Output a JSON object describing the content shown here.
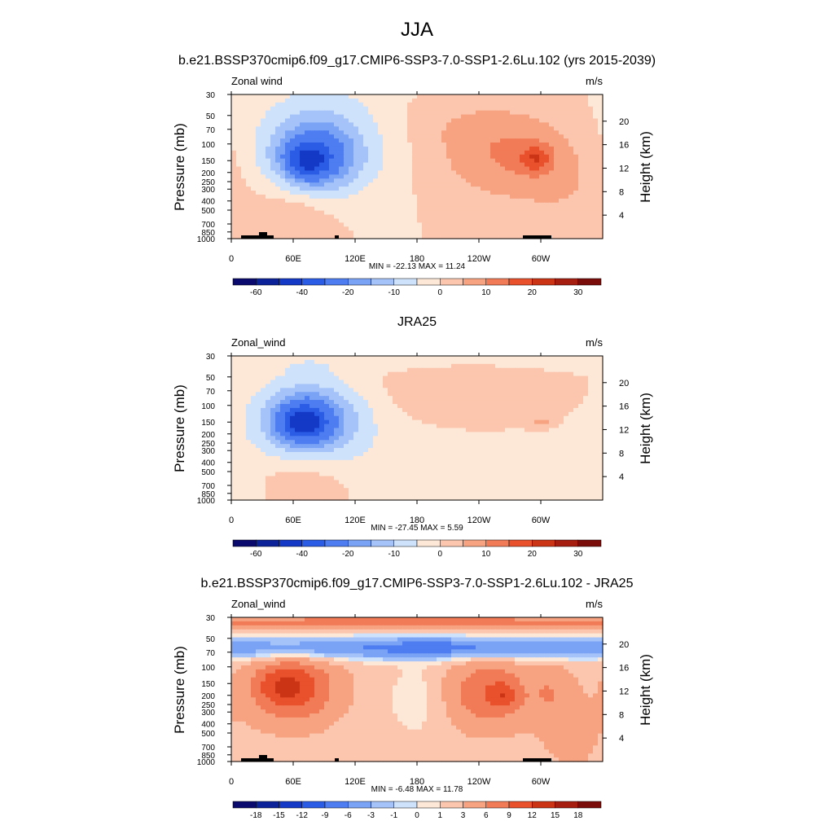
{
  "figure": {
    "season_title": "JJA"
  },
  "chart_data": [
    {
      "type": "heatmap",
      "title": "b.e21.BSSP370cmip6.f09_g17.CMIP6-SSP3-7.0-SSP1-2.6Lu.102 (yrs 2015-2039)",
      "variable_label": "Zonal wind",
      "units": "m/s",
      "ylabel": "Pressure (mb)",
      "ylabel_right": "Height (km)",
      "x_ticks": [
        "0",
        "60E",
        "120E",
        "180",
        "120W",
        "60W"
      ],
      "x_tick_values": [
        0,
        60,
        120,
        180,
        240,
        300
      ],
      "xlim": [
        0,
        360
      ],
      "y_ticks": [
        "30",
        "50",
        "70",
        "100",
        "150",
        "200",
        "250",
        "300",
        "400",
        "500",
        "700",
        "850",
        "1000"
      ],
      "y_tick_values": [
        30,
        50,
        70,
        100,
        150,
        200,
        250,
        300,
        400,
        500,
        700,
        850,
        1000
      ],
      "ylim": [
        1000,
        30
      ],
      "y_scale": "log",
      "height_ticks": [
        "20",
        "16",
        "12",
        "8",
        "4"
      ],
      "height_tick_values": [
        20,
        16,
        12,
        8,
        4
      ],
      "stats": "MIN = -22.13  MAX =  11.24",
      "colorbar_labels": [
        "-60",
        "-40",
        "-20",
        "-10",
        "0",
        "10",
        "20",
        "30"
      ],
      "colorbar_levels": [
        -70,
        -60,
        -50,
        -40,
        -30,
        -20,
        -15,
        -10,
        -5,
        0,
        5,
        10,
        15,
        20,
        25,
        30
      ],
      "colorbar_colors": [
        "#0a0a6e",
        "#0b2299",
        "#1339c6",
        "#2b5ce6",
        "#4d7df0",
        "#7aa2f5",
        "#a6c3f9",
        "#cfe2fc",
        "#fde8d8",
        "#fbc6ad",
        "#f7a280",
        "#f27b57",
        "#e8512c",
        "#cc3416",
        "#a51e10",
        "#7a0c0a"
      ],
      "field": {
        "background": 0,
        "features": [
          {
            "lon": 90,
            "p": 90,
            "dlon": 70,
            "dlp": 0.6,
            "value": -10
          },
          {
            "lon": 80,
            "p": 140,
            "dlon": 40,
            "dlp": 0.35,
            "value": -20
          },
          {
            "lon": 75,
            "p": 150,
            "dlon": 18,
            "dlp": 0.16,
            "value": -22
          },
          {
            "lon": 270,
            "p": 140,
            "dlon": 70,
            "dlp": 0.45,
            "value": 10
          },
          {
            "lon": 295,
            "p": 140,
            "dlon": 15,
            "dlp": 0.14,
            "value": 11
          },
          {
            "lon": 60,
            "p": 600,
            "dlon": 40,
            "dlp": 0.35,
            "value": 6
          },
          {
            "lon": 220,
            "p": 60,
            "dlon": 80,
            "dlp": 0.3,
            "value": 3
          },
          {
            "lon": 330,
            "p": 400,
            "dlon": 50,
            "dlp": 0.5,
            "value": 3
          }
        ]
      }
    },
    {
      "type": "heatmap",
      "title": "JRA25",
      "variable_label": "Zonal_wind",
      "units": "m/s",
      "ylabel": "Pressure (mb)",
      "ylabel_right": "Height (km)",
      "x_ticks": [
        "0",
        "60E",
        "120E",
        "180",
        "120W",
        "60W"
      ],
      "x_tick_values": [
        0,
        60,
        120,
        180,
        240,
        300
      ],
      "xlim": [
        0,
        360
      ],
      "y_ticks": [
        "30",
        "50",
        "70",
        "100",
        "150",
        "200",
        "250",
        "300",
        "400",
        "500",
        "700",
        "850",
        "1000"
      ],
      "y_tick_values": [
        30,
        50,
        70,
        100,
        150,
        200,
        250,
        300,
        400,
        500,
        700,
        850,
        1000
      ],
      "ylim": [
        1000,
        30
      ],
      "y_scale": "log",
      "height_ticks": [
        "20",
        "16",
        "12",
        "8",
        "4"
      ],
      "height_tick_values": [
        20,
        16,
        12,
        8,
        4
      ],
      "stats": "MIN = -27.45  MAX =   5.59",
      "colorbar_labels": [
        "-60",
        "-40",
        "-20",
        "-10",
        "0",
        "10",
        "20",
        "30"
      ],
      "colorbar_levels": [
        -70,
        -60,
        -50,
        -40,
        -30,
        -20,
        -15,
        -10,
        -5,
        0,
        5,
        10,
        15,
        20,
        25,
        30
      ],
      "colorbar_colors": [
        "#0a0a6e",
        "#0b2299",
        "#1339c6",
        "#2b5ce6",
        "#4d7df0",
        "#7aa2f5",
        "#a6c3f9",
        "#cfe2fc",
        "#fde8d8",
        "#fbc6ad",
        "#f7a280",
        "#f27b57",
        "#e8512c",
        "#cc3416",
        "#a51e10",
        "#7a0c0a"
      ],
      "field": {
        "background": 0,
        "features": [
          {
            "lon": 180,
            "p": 34,
            "dlon": 400,
            "dlp": 0.12,
            "value": -3
          },
          {
            "lon": 75,
            "p": 140,
            "dlon": 50,
            "dlp": 0.4,
            "value": -22
          },
          {
            "lon": 70,
            "p": 150,
            "dlon": 22,
            "dlp": 0.18,
            "value": -27
          },
          {
            "lon": 200,
            "p": 270,
            "dlon": 150,
            "dlp": 0.6,
            "value": -3
          },
          {
            "lon": 230,
            "p": 80,
            "dlon": 90,
            "dlp": 0.45,
            "value": 5
          },
          {
            "lon": 300,
            "p": 150,
            "dlon": 12,
            "dlp": 0.06,
            "value": 6
          },
          {
            "lon": 70,
            "p": 650,
            "dlon": 40,
            "dlp": 0.3,
            "value": 5
          },
          {
            "lon": 360,
            "p": 800,
            "dlon": 30,
            "dlp": 0.3,
            "value": -3
          }
        ]
      }
    },
    {
      "type": "heatmap",
      "title": "b.e21.BSSP370cmip6.f09_g17.CMIP6-SSP3-7.0-SSP1-2.6Lu.102 - JRA25",
      "variable_label": "Zonal_wind",
      "units": "m/s",
      "ylabel": "Pressure (mb)",
      "ylabel_right": "Height (km)",
      "x_ticks": [
        "0",
        "60E",
        "120E",
        "180",
        "120W",
        "60W"
      ],
      "x_tick_values": [
        0,
        60,
        120,
        180,
        240,
        300
      ],
      "xlim": [
        0,
        360
      ],
      "y_ticks": [
        "30",
        "50",
        "70",
        "100",
        "150",
        "200",
        "250",
        "300",
        "400",
        "500",
        "700",
        "850",
        "1000"
      ],
      "y_tick_values": [
        30,
        50,
        70,
        100,
        150,
        200,
        250,
        300,
        400,
        500,
        700,
        850,
        1000
      ],
      "ylim": [
        1000,
        30
      ],
      "y_scale": "log",
      "height_ticks": [
        "20",
        "16",
        "12",
        "8",
        "4"
      ],
      "height_tick_values": [
        20,
        16,
        12,
        8,
        4
      ],
      "stats": "MIN =  -6.48  MAX =  11.78",
      "colorbar_labels": [
        "-18",
        "-15",
        "-12",
        "-9",
        "-6",
        "-3",
        "-1",
        "0",
        "1",
        "3",
        "6",
        "9",
        "12",
        "15",
        "18"
      ],
      "colorbar_levels": [
        -21,
        -18,
        -15,
        -12,
        -9,
        -6,
        -3,
        -1,
        0,
        1,
        3,
        6,
        9,
        12,
        15,
        18
      ],
      "colorbar_colors": [
        "#0a0a6e",
        "#0b2299",
        "#1339c6",
        "#2b5ce6",
        "#4d7df0",
        "#7aa2f5",
        "#a6c3f9",
        "#cfe2fc",
        "#fde8d8",
        "#fbc6ad",
        "#f7a280",
        "#f27b57",
        "#e8512c",
        "#cc3416",
        "#a51e10",
        "#7a0c0a"
      ],
      "field": {
        "background": 2,
        "features": [
          {
            "lon": 180,
            "p": 34,
            "dlon": 400,
            "dlp": 0.08,
            "value": 5
          },
          {
            "lon": 180,
            "p": 63,
            "dlon": 400,
            "dlp": 0.12,
            "value": -8
          },
          {
            "lon": 200,
            "p": 62,
            "dlon": 50,
            "dlp": 0.08,
            "value": -2
          },
          {
            "lon": 60,
            "p": 170,
            "dlon": 40,
            "dlp": 0.35,
            "value": 9
          },
          {
            "lon": 45,
            "p": 160,
            "dlon": 25,
            "dlp": 0.18,
            "value": 3
          },
          {
            "lon": 250,
            "p": 190,
            "dlon": 40,
            "dlp": 0.35,
            "value": 7
          },
          {
            "lon": 265,
            "p": 200,
            "dlon": 12,
            "dlp": 0.12,
            "value": 4
          },
          {
            "lon": 310,
            "p": 180,
            "dlon": 20,
            "dlp": 0.3,
            "value": 3
          },
          {
            "lon": 180,
            "p": 220,
            "dlon": 30,
            "dlp": 0.4,
            "value": -2
          },
          {
            "lon": 330,
            "p": 500,
            "dlon": 30,
            "dlp": 0.4,
            "value": 2
          }
        ]
      }
    }
  ]
}
